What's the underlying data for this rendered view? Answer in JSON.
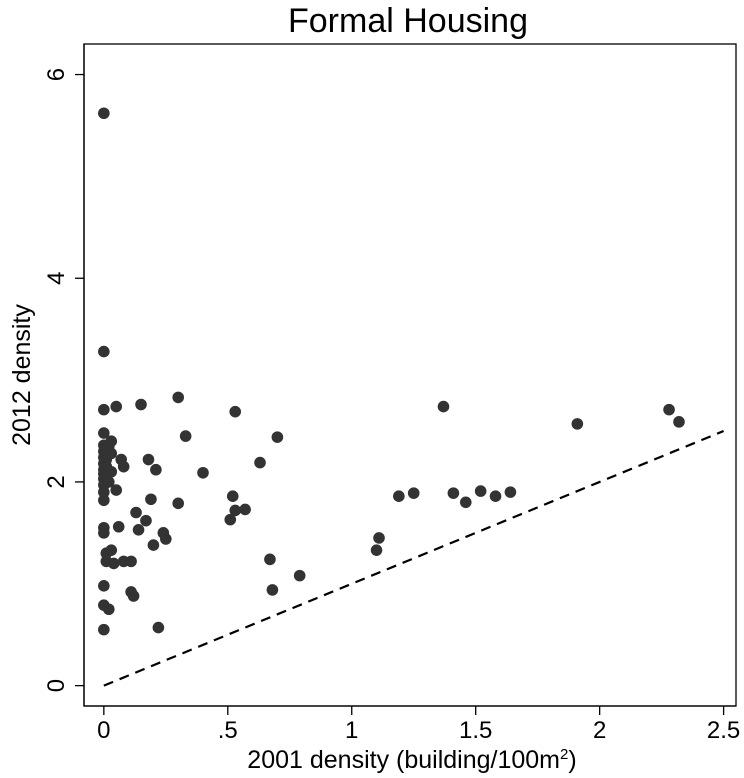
{
  "chart_data": {
    "type": "scatter",
    "title": "Formal Housing",
    "xlabel": "2001 density (building/100m",
    "xlabel_sup": "2",
    "xlabel_end": ")",
    "ylabel": "2012 density",
    "xlim": [
      -0.08,
      2.55
    ],
    "ylim": [
      -0.2,
      6.3
    ],
    "xticks": [
      0,
      0.5,
      1,
      1.5,
      2,
      2.5
    ],
    "xtick_labels": [
      "0",
      ".5",
      "1",
      "1.5",
      "2",
      "2.5"
    ],
    "yticks": [
      0,
      2,
      4,
      6
    ],
    "ytick_labels": [
      "0",
      "2",
      "4",
      "6"
    ],
    "grid": false,
    "reference_line": {
      "style": "dashed",
      "x": [
        0,
        2.5
      ],
      "y": [
        0,
        2.5
      ]
    },
    "marker_color": "#333333",
    "points": [
      [
        0,
        5.62
      ],
      [
        0,
        3.28
      ],
      [
        0,
        2.71
      ],
      [
        0,
        2.48
      ],
      [
        0,
        2.36
      ],
      [
        0,
        2.3
      ],
      [
        0,
        2.24
      ],
      [
        0,
        2.18
      ],
      [
        0,
        2.12
      ],
      [
        0,
        2.08
      ],
      [
        0,
        2.03
      ],
      [
        0,
        1.97
      ],
      [
        0,
        1.9
      ],
      [
        0,
        1.82
      ],
      [
        0,
        1.55
      ],
      [
        0,
        1.5
      ],
      [
        0,
        0.98
      ],
      [
        0,
        0.79
      ],
      [
        0,
        0.55
      ],
      [
        0.01,
        2.22
      ],
      [
        0.01,
        2.15
      ],
      [
        0.01,
        2.05
      ],
      [
        0.01,
        1.22
      ],
      [
        0.01,
        1.3
      ],
      [
        0.02,
        2.35
      ],
      [
        0.02,
        2.0
      ],
      [
        0.02,
        0.75
      ],
      [
        0.03,
        2.4
      ],
      [
        0.03,
        2.28
      ],
      [
        0.03,
        2.1
      ],
      [
        0.03,
        1.33
      ],
      [
        0.04,
        1.2
      ],
      [
        0.05,
        2.74
      ],
      [
        0.05,
        1.92
      ],
      [
        0.06,
        1.56
      ],
      [
        0.07,
        2.22
      ],
      [
        0.08,
        2.15
      ],
      [
        0.08,
        1.22
      ],
      [
        0.11,
        1.22
      ],
      [
        0.11,
        0.92
      ],
      [
        0.12,
        0.88
      ],
      [
        0.13,
        1.7
      ],
      [
        0.14,
        1.53
      ],
      [
        0.15,
        2.76
      ],
      [
        0.17,
        1.62
      ],
      [
        0.18,
        2.22
      ],
      [
        0.19,
        1.83
      ],
      [
        0.2,
        1.38
      ],
      [
        0.21,
        2.12
      ],
      [
        0.22,
        0.57
      ],
      [
        0.24,
        1.5
      ],
      [
        0.25,
        1.44
      ],
      [
        0.3,
        2.83
      ],
      [
        0.3,
        1.79
      ],
      [
        0.33,
        2.45
      ],
      [
        0.4,
        2.09
      ],
      [
        0.51,
        1.63
      ],
      [
        0.52,
        1.86
      ],
      [
        0.53,
        1.72
      ],
      [
        0.53,
        2.69
      ],
      [
        0.57,
        1.73
      ],
      [
        0.63,
        2.19
      ],
      [
        0.67,
        1.24
      ],
      [
        0.68,
        0.94
      ],
      [
        0.7,
        2.44
      ],
      [
        0.79,
        1.08
      ],
      [
        1.1,
        1.33
      ],
      [
        1.11,
        1.45
      ],
      [
        1.19,
        1.86
      ],
      [
        1.25,
        1.89
      ],
      [
        1.37,
        2.74
      ],
      [
        1.41,
        1.89
      ],
      [
        1.46,
        1.8
      ],
      [
        1.52,
        1.91
      ],
      [
        1.58,
        1.86
      ],
      [
        1.64,
        1.9
      ],
      [
        1.91,
        2.57
      ],
      [
        2.28,
        2.71
      ],
      [
        2.32,
        2.59
      ]
    ]
  }
}
